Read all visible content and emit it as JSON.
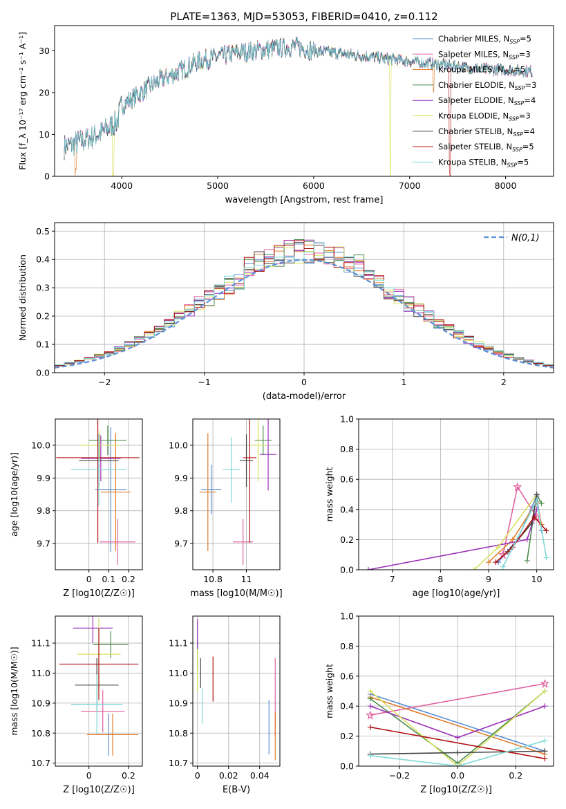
{
  "title": "PLATE=1363, MJD=53053, FIBERID=0410, z=0.112",
  "colors": {
    "Chabrier MILES": "#5b8fd6",
    "Salpeter MILES": "#e0609e",
    "Kroupa MILES": "#e07b2a",
    "Chabrier ELODIE": "#4c8c4c",
    "Salpeter ELODIE": "#9b30b8",
    "Kroupa ELODIE": "#d8e060",
    "Chabrier STELIB": "#444444",
    "Salpeter STELIB": "#b01010",
    "Kroupa STELIB": "#7fd8d8"
  },
  "chart_data": [
    {
      "id": "spectrum",
      "type": "line",
      "xlabel": "wavelength [Angstrom, rest frame]",
      "ylabel": "Flux [f_λ 10⁻¹⁷ erg cm⁻² s⁻¹ A⁻¹]",
      "xlim": [
        3300,
        8500
      ],
      "ylim": [
        0,
        36
      ],
      "xticks": [
        4000,
        5000,
        6000,
        7000,
        8000
      ],
      "yticks": [
        0,
        10,
        20,
        30
      ],
      "legend_position": "top-right",
      "legend": [
        {
          "label": "Chabrier MILES, N",
          "sub": "SSP",
          "tail": "=5",
          "series": "Chabrier MILES"
        },
        {
          "label": "Salpeter MILES, N",
          "sub": "SSP",
          "tail": "=3",
          "series": "Salpeter MILES"
        },
        {
          "label": "Kroupa MILES, N",
          "sub": "SSP",
          "tail": "=5",
          "series": "Kroupa MILES"
        },
        {
          "label": "Chabrier ELODIE, N",
          "sub": "SSP",
          "tail": "=3",
          "series": "Chabrier ELODIE"
        },
        {
          "label": "Salpeter ELODIE, N",
          "sub": "SSP",
          "tail": "=4",
          "series": "Salpeter ELODIE"
        },
        {
          "label": "Kroupa ELODIE, N",
          "sub": "SSP",
          "tail": "=3",
          "series": "Kroupa ELODIE"
        },
        {
          "label": "Chabrier STELIB, N",
          "sub": "SSP",
          "tail": "=4",
          "series": "Chabrier STELIB"
        },
        {
          "label": "Salpeter STELIB, N",
          "sub": "SSP",
          "tail": "=5",
          "series": "Salpeter STELIB"
        },
        {
          "label": "Kroupa STELIB, N",
          "sub": "SSP",
          "tail": "=5",
          "series": "Kroupa STELIB"
        }
      ],
      "data_range": [
        3400,
        8280
      ],
      "continuum": [
        [
          3400,
          7
        ],
        [
          3600,
          8.5
        ],
        [
          3800,
          10.5
        ],
        [
          3950,
          13
        ],
        [
          4000,
          17
        ],
        [
          4200,
          20
        ],
        [
          4400,
          23
        ],
        [
          4600,
          25
        ],
        [
          4800,
          27.5
        ],
        [
          5000,
          28.5
        ],
        [
          5200,
          29.5
        ],
        [
          5400,
          30
        ],
        [
          5600,
          30.5
        ],
        [
          5800,
          31
        ],
        [
          6000,
          30
        ],
        [
          6200,
          29.5
        ],
        [
          6400,
          29
        ],
        [
          6600,
          28.5
        ],
        [
          6800,
          28
        ],
        [
          7000,
          27.5
        ],
        [
          7200,
          27
        ],
        [
          7400,
          26.5
        ],
        [
          7600,
          26
        ],
        [
          7800,
          25.5
        ],
        [
          8000,
          25.5
        ],
        [
          8280,
          25
        ]
      ],
      "dips": [
        {
          "series": "Kroupa MILES",
          "x": 3520,
          "depth": 8
        },
        {
          "series": "Kroupa ELODIE",
          "x": 3910,
          "depth": 11
        },
        {
          "series": "Kroupa ELODIE",
          "x": 6800,
          "depth": 28
        },
        {
          "series": "Kroupa MILES",
          "x": 7250,
          "depth": 6
        },
        {
          "series": "Salpeter STELIB",
          "x": 7420,
          "depth": 26
        }
      ]
    },
    {
      "id": "residual-hist",
      "type": "step",
      "xlabel": "(data-model)/error",
      "ylabel": "Normed distribution",
      "xlim": [
        -2.5,
        2.5
      ],
      "ylim": [
        0,
        0.53
      ],
      "xticks": [
        -2,
        -1,
        0,
        1,
        2
      ],
      "yticks": [
        0.0,
        0.1,
        0.2,
        0.3,
        0.4,
        0.5
      ],
      "grid": true,
      "legend_position": "top-right",
      "gaussian_label": "N(0,1)",
      "gaussian_color": "#5b8fd6",
      "bin_width": 0.1
    },
    {
      "id": "age-vs-Z",
      "type": "errorbar",
      "xlabel": "Z [log10(Z/Z☉)]",
      "ylabel": "age  [log10(age/yr)]",
      "xlim": [
        -0.17,
        0.27
      ],
      "ylim": [
        9.62,
        10.08
      ],
      "xticks": [
        0.0,
        0.1,
        0.2
      ],
      "yticks": [
        9.7,
        9.8,
        9.9,
        10.0
      ],
      "points": [
        {
          "series": "Chabrier MILES",
          "x": 0.11,
          "xerr": 0.08,
          "y": 9.865,
          "yerr": 0.19
        },
        {
          "series": "Salpeter MILES",
          "x": 0.145,
          "xerr": 0.09,
          "y": 9.705,
          "yerr": 0.07
        },
        {
          "series": "Kroupa MILES",
          "x": 0.135,
          "xerr": 0.075,
          "y": 9.857,
          "yerr": 0.18
        },
        {
          "series": "Chabrier ELODIE",
          "x": 0.095,
          "xerr": 0.095,
          "y": 10.015,
          "yerr": 0.045
        },
        {
          "series": "Salpeter ELODIE",
          "x": 0.06,
          "xerr": 0.1,
          "y": 9.96,
          "yerr": 0.07
        },
        {
          "series": "Kroupa ELODIE",
          "x": 0.055,
          "xerr": 0.1,
          "y": 10.0,
          "yerr": 0.045
        },
        {
          "series": "Chabrier STELIB",
          "x": 0.05,
          "xerr": 0.1,
          "y": 9.953,
          "yerr": 0.08
        },
        {
          "series": "Salpeter STELIB",
          "x": 0.045,
          "xerr": 0.21,
          "y": 9.962,
          "yerr": 0.26
        },
        {
          "series": "Kroupa STELIB",
          "x": 0.05,
          "xerr": 0.14,
          "y": 9.925,
          "yerr": 0.11
        }
      ]
    },
    {
      "id": "age-vs-mass",
      "type": "errorbar",
      "xlabel": "mass [log10(M/M☉)]",
      "ylabel": "",
      "xlim": [
        10.68,
        11.2
      ],
      "ylim": [
        9.62,
        10.08
      ],
      "xticks": [
        10.8,
        11.0
      ],
      "yticks": [
        9.7,
        9.8,
        9.9,
        10.0
      ],
      "points": [
        {
          "series": "Chabrier MILES",
          "x": 10.79,
          "xerr": 0.06,
          "y": 9.865,
          "yerr": 0.075
        },
        {
          "series": "Salpeter MILES",
          "x": 10.98,
          "xerr": 0.06,
          "y": 9.705,
          "yerr": 0.07
        },
        {
          "series": "Kroupa MILES",
          "x": 10.77,
          "xerr": 0.05,
          "y": 9.857,
          "yerr": 0.18
        },
        {
          "series": "Chabrier ELODIE",
          "x": 11.1,
          "xerr": 0.05,
          "y": 10.015,
          "yerr": 0.045
        },
        {
          "series": "Salpeter ELODIE",
          "x": 11.13,
          "xerr": 0.05,
          "y": 9.972,
          "yerr": 0.11
        },
        {
          "series": "Kroupa ELODIE",
          "x": 11.07,
          "xerr": 0.05,
          "y": 10.0,
          "yerr": 0.11
        },
        {
          "series": "Chabrier STELIB",
          "x": 11.0,
          "xerr": 0.04,
          "y": 9.953,
          "yerr": 0.08
        },
        {
          "series": "Salpeter STELIB",
          "x": 11.02,
          "xerr": 0.04,
          "y": 9.962,
          "yerr": 0.26
        },
        {
          "series": "Kroupa STELIB",
          "x": 10.91,
          "xerr": 0.05,
          "y": 9.925,
          "yerr": 0.1
        }
      ]
    },
    {
      "id": "mass-weight-vs-age",
      "type": "line",
      "xlabel": "age  [log10(age/yr)]",
      "ylabel": "mass weight",
      "xlim": [
        6.3,
        10.35
      ],
      "ylim": [
        0,
        1
      ],
      "xticks": [
        7,
        8,
        9,
        10
      ],
      "yticks": [
        0.0,
        0.2,
        0.4,
        0.6,
        0.8,
        1.0
      ],
      "series": [
        {
          "series": "Chabrier MILES",
          "points": [
            [
              9.2,
              0.05
            ],
            [
              9.6,
              0.2
            ],
            [
              10.0,
              0.49
            ],
            [
              10.1,
              0.26
            ]
          ]
        },
        {
          "series": "Salpeter MILES",
          "points": [
            [
              9.3,
              0.1
            ],
            [
              9.6,
              0.55
            ],
            [
              10.0,
              0.35
            ]
          ]
        },
        {
          "series": "Kroupa MILES",
          "points": [
            [
              9.0,
              0.05
            ],
            [
              9.5,
              0.2
            ],
            [
              10.0,
              0.45
            ],
            [
              10.1,
              0.3
            ]
          ]
        },
        {
          "series": "Chabrier ELODIE",
          "points": [
            [
              9.8,
              0.06
            ],
            [
              10.0,
              0.5
            ],
            [
              10.1,
              0.44
            ]
          ]
        },
        {
          "series": "Salpeter ELODIE",
          "points": [
            [
              6.5,
              0.0
            ],
            [
              9.8,
              0.2
            ],
            [
              10.0,
              0.4
            ]
          ]
        },
        {
          "series": "Kroupa ELODIE",
          "points": [
            [
              8.7,
              0.0
            ],
            [
              9.2,
              0.15
            ],
            [
              10.0,
              0.5
            ]
          ]
        },
        {
          "series": "Chabrier STELIB",
          "points": [
            [
              9.4,
              0.12
            ],
            [
              9.9,
              0.31
            ],
            [
              10.0,
              0.5
            ]
          ]
        },
        {
          "series": "Salpeter STELIB",
          "points": [
            [
              9.15,
              0.05
            ],
            [
              9.5,
              0.15
            ],
            [
              9.95,
              0.35
            ],
            [
              10.2,
              0.26
            ]
          ]
        },
        {
          "series": "Kroupa STELIB",
          "points": [
            [
              9.3,
              0.02
            ],
            [
              10.0,
              0.46
            ],
            [
              10.2,
              0.08
            ]
          ]
        }
      ]
    },
    {
      "id": "mass-vs-Z",
      "type": "errorbar",
      "xlabel": "Z [log10(Z/Z☉)]",
      "ylabel": "mass [log10(M/M☉)]",
      "xlim": [
        -0.17,
        0.27
      ],
      "ylim": [
        10.69,
        11.19
      ],
      "xticks": [
        0.0,
        0.2
      ],
      "yticks": [
        10.7,
        10.8,
        10.9,
        11.0,
        11.1
      ],
      "points": [
        {
          "series": "Chabrier MILES",
          "x": 0.1,
          "xerr": 0.06,
          "y": 10.795,
          "yerr": 0.07
        },
        {
          "series": "Salpeter MILES",
          "x": 0.07,
          "xerr": 0.11,
          "y": 10.873,
          "yerr": 0.07
        },
        {
          "series": "Kroupa MILES",
          "x": 0.12,
          "xerr": 0.13,
          "y": 10.795,
          "yerr": 0.07
        },
        {
          "series": "Chabrier ELODIE",
          "x": 0.11,
          "xerr": 0.09,
          "y": 11.095,
          "yerr": 0.045
        },
        {
          "series": "Salpeter ELODIE",
          "x": 0.02,
          "xerr": 0.1,
          "y": 11.15,
          "yerr": 0.05
        },
        {
          "series": "Kroupa ELODIE",
          "x": 0.05,
          "xerr": 0.11,
          "y": 11.063,
          "yerr": 0.12
        },
        {
          "series": "Chabrier STELIB",
          "x": 0.04,
          "xerr": 0.11,
          "y": 10.96,
          "yerr": 0.09
        },
        {
          "series": "Salpeter STELIB",
          "x": 0.05,
          "xerr": 0.2,
          "y": 11.03,
          "yerr": 0.12
        },
        {
          "series": "Kroupa STELIB",
          "x": 0.04,
          "xerr": 0.13,
          "y": 10.896,
          "yerr": 0.1
        }
      ]
    },
    {
      "id": "mass-vs-EBV",
      "type": "errorbar",
      "xlabel": "E(B-V)",
      "ylabel": "",
      "xlim": [
        -0.003,
        0.053
      ],
      "ylim": [
        10.69,
        11.19
      ],
      "xticks": [
        0.0,
        0.02,
        0.04
      ],
      "yticks": [
        10.7,
        10.8,
        10.9,
        11.0,
        11.1
      ],
      "points": [
        {
          "series": "Chabrier MILES",
          "x": 0.046,
          "xerr": 0,
          "y": 10.82,
          "yerr": 0.09
        },
        {
          "series": "Salpeter MILES",
          "x": 0.05,
          "xerr": 0,
          "y": 10.92,
          "yerr": 0.13
        },
        {
          "series": "Kroupa MILES",
          "x": 0.05,
          "xerr": 0,
          "y": 10.79,
          "yerr": 0.08
        },
        {
          "series": "Chabrier ELODIE",
          "x": 0.0,
          "xerr": 0,
          "y": 11.06,
          "yerr": 0.05
        },
        {
          "series": "Salpeter ELODIE",
          "x": 0.0,
          "xerr": 0,
          "y": 11.13,
          "yerr": 0.05
        },
        {
          "series": "Kroupa ELODIE",
          "x": 0.0,
          "xerr": 0,
          "y": 11.01,
          "yerr": 0.07
        },
        {
          "series": "Chabrier STELIB",
          "x": 0.002,
          "xerr": 0,
          "y": 11.0,
          "yerr": 0.05
        },
        {
          "series": "Salpeter STELIB",
          "x": 0.01,
          "xerr": 0,
          "y": 10.98,
          "yerr": 0.075
        },
        {
          "series": "Kroupa STELIB",
          "x": 0.003,
          "xerr": 0,
          "y": 10.89,
          "yerr": 0.06
        }
      ]
    },
    {
      "id": "mass-weight-vs-Z",
      "type": "line",
      "xlabel": "Z [log10(Z/Z☉)]",
      "ylabel": "mass weight",
      "xlim": [
        -0.34,
        0.33
      ],
      "ylim": [
        0,
        1
      ],
      "xticks": [
        -0.2,
        0.0,
        0.2
      ],
      "yticks": [
        0.0,
        0.2,
        0.4,
        0.6,
        0.8,
        1.0
      ],
      "series": [
        {
          "series": "Chabrier MILES",
          "points": [
            [
              -0.3,
              0.48
            ],
            [
              0.3,
              0.1
            ]
          ]
        },
        {
          "series": "Salpeter MILES",
          "points": [
            [
              -0.3,
              0.34
            ],
            [
              0.3,
              0.55
            ]
          ]
        },
        {
          "series": "Kroupa MILES",
          "points": [
            [
              -0.3,
              0.46
            ],
            [
              0.3,
              0.08
            ]
          ]
        },
        {
          "series": "Chabrier ELODIE",
          "points": [
            [
              -0.3,
              0.45
            ],
            [
              0.0,
              0.02
            ],
            [
              0.3,
              0.5
            ]
          ]
        },
        {
          "series": "Salpeter ELODIE",
          "points": [
            [
              -0.3,
              0.4
            ],
            [
              0.0,
              0.19
            ],
            [
              0.3,
              0.4
            ]
          ]
        },
        {
          "series": "Kroupa ELODIE",
          "points": [
            [
              -0.3,
              0.5
            ],
            [
              0.0,
              0.0
            ],
            [
              0.3,
              0.5
            ]
          ]
        },
        {
          "series": "Chabrier STELIB",
          "points": [
            [
              -0.3,
              0.08
            ],
            [
              0.0,
              0.09
            ],
            [
              0.3,
              0.1
            ]
          ]
        },
        {
          "series": "Salpeter STELIB",
          "points": [
            [
              -0.3,
              0.26
            ],
            [
              0.3,
              0.05
            ]
          ]
        },
        {
          "series": "Kroupa STELIB",
          "points": [
            [
              -0.3,
              0.07
            ],
            [
              0.0,
              0.0
            ],
            [
              0.3,
              0.17
            ]
          ]
        }
      ]
    }
  ]
}
